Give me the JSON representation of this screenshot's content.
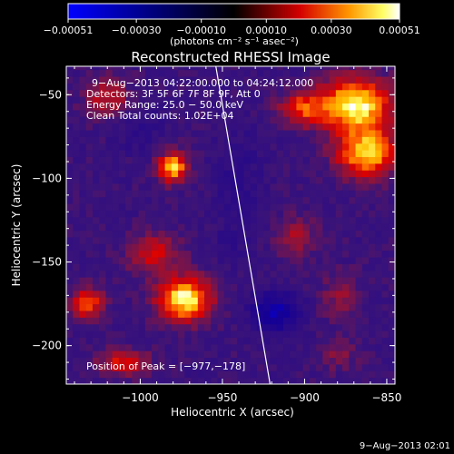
{
  "chart_data": {
    "type": "heatmap",
    "title": "Reconstructed RHESSI Image",
    "xlabel": "Heliocentric X (arcsec)",
    "ylabel": "Heliocentric Y (arcsec)",
    "xlim": [
      -1045,
      -845
    ],
    "ylim": [
      -223,
      -33
    ],
    "x_ticks": [
      -1000,
      -950,
      -900,
      -850
    ],
    "x_tick_labels": [
      "−1000",
      "−950",
      "−900",
      "−850"
    ],
    "y_ticks": [
      -50,
      -100,
      -150,
      -200
    ],
    "y_tick_labels": [
      "−50",
      "−100",
      "−150",
      "−200"
    ],
    "colorbar": {
      "range": [
        -0.00051,
        0.00051
      ],
      "ticks": [
        -0.00051,
        -0.0003,
        -0.0001,
        0.0001,
        0.0003,
        0.00051
      ],
      "tick_labels": [
        "−0.00051",
        "−0.00030",
        "−0.00010",
        "0.00010",
        "0.00030",
        "0.00051"
      ],
      "units_label": "(photons cm⁻² s⁻¹ asec⁻²)"
    },
    "annotations": {
      "time": "9−Aug−2013 04:22:00.000 to 04:24:12.000",
      "detectors": "Detectors: 3F 5F 6F 7F 8F 9F, Att 0",
      "energy": "Energy Range: 25.0 − 50.0 keV",
      "clean": "Clean     Total counts: 1.02E+04",
      "peak": "Position of Peak = [−977,−178]"
    },
    "peak": [
      -977,
      -178
    ],
    "limb_line": [
      [
        -954,
        -33
      ],
      [
        -921,
        -223
      ]
    ],
    "hot_regions": [
      {
        "x": -869,
        "y": -56,
        "rx": 22,
        "ry": 16,
        "v": 0.00051
      },
      {
        "x": -862,
        "y": -85,
        "rx": 18,
        "ry": 14,
        "v": 0.00046
      },
      {
        "x": -902,
        "y": -58,
        "rx": 14,
        "ry": 10,
        "v": 0.00028
      },
      {
        "x": -980,
        "y": -93,
        "rx": 9,
        "ry": 9,
        "v": 0.00045
      },
      {
        "x": -1020,
        "y": -52,
        "rx": 14,
        "ry": 12,
        "v": 0.00022
      },
      {
        "x": -973,
        "y": -172,
        "rx": 16,
        "ry": 13,
        "v": 0.00051
      },
      {
        "x": -1032,
        "y": -175,
        "rx": 10,
        "ry": 10,
        "v": 0.00032
      },
      {
        "x": -992,
        "y": -145,
        "rx": 16,
        "ry": 12,
        "v": 0.00024
      },
      {
        "x": -1010,
        "y": -210,
        "rx": 16,
        "ry": 8,
        "v": 0.00025
      },
      {
        "x": -905,
        "y": -135,
        "rx": 12,
        "ry": 12,
        "v": 0.00018
      },
      {
        "x": -878,
        "y": -170,
        "rx": 12,
        "ry": 14,
        "v": 0.00014
      },
      {
        "x": -880,
        "y": -205,
        "rx": 12,
        "ry": 10,
        "v": 0.00012
      }
    ],
    "cool_regions": [
      {
        "x": -940,
        "y": -100,
        "rx": 14,
        "ry": 30,
        "v": -8e-05
      },
      {
        "x": -918,
        "y": -180,
        "rx": 14,
        "ry": 12,
        "v": -0.00028
      },
      {
        "x": -1000,
        "y": -70,
        "rx": 14,
        "ry": 14,
        "v": -8e-05
      },
      {
        "x": -945,
        "y": -140,
        "rx": 10,
        "ry": 12,
        "v": -6e-05
      }
    ]
  },
  "footer": {
    "timestamp": "9−Aug−2013 02:01"
  }
}
